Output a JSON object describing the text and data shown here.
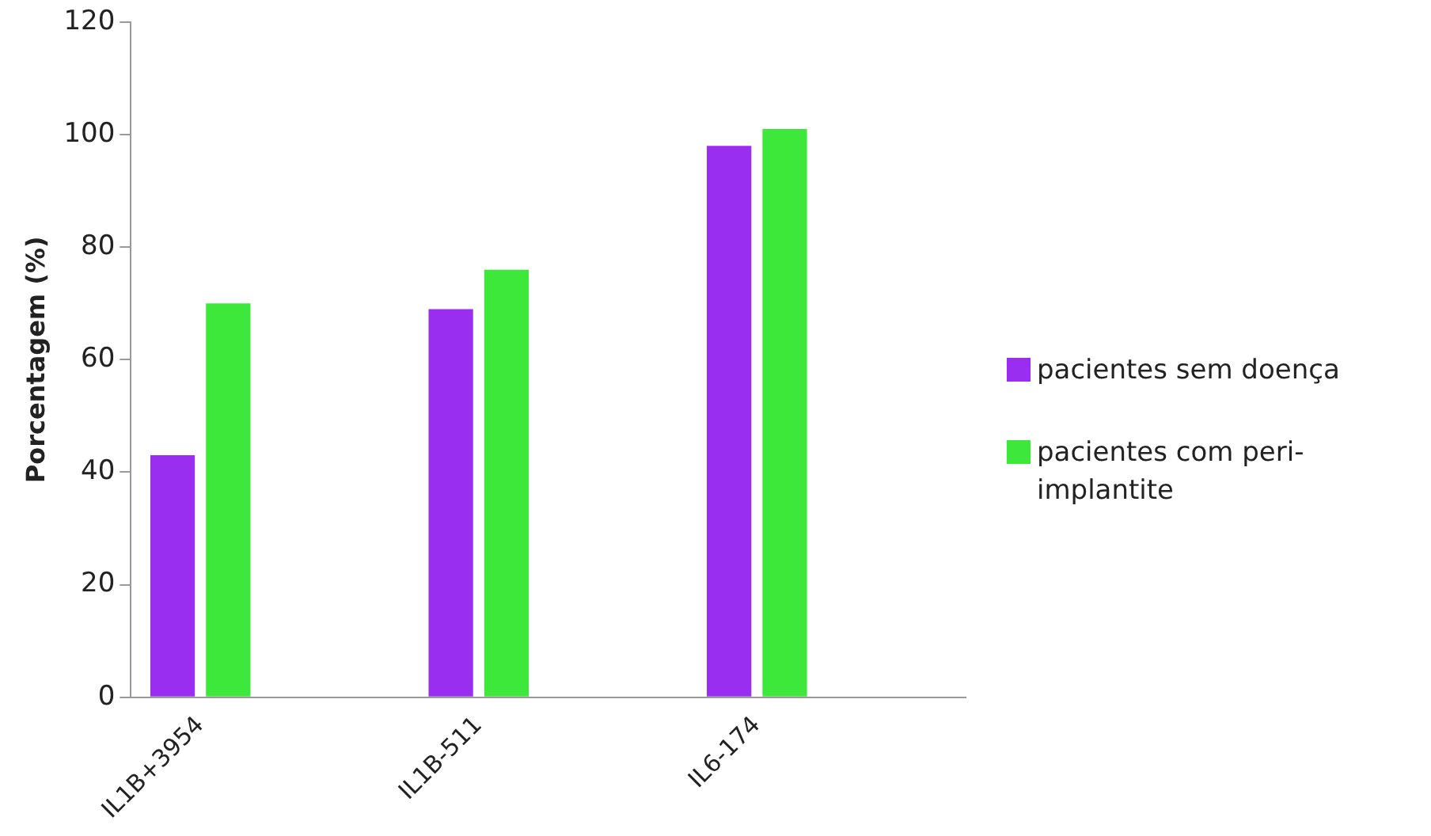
{
  "chart_data": {
    "type": "bar",
    "ylabel": "Porcentagem (%)",
    "categories": [
      "IL1B+3954",
      null,
      "IL1B-511",
      null,
      "IL6-174",
      null
    ],
    "series": [
      {
        "name": "pacientes sem doença",
        "color": "#9a2ef0",
        "values": [
          43,
          null,
          69,
          null,
          98,
          null
        ]
      },
      {
        "name": "pacientes com peri-implantite",
        "color": "#3ee83a",
        "values": [
          70,
          null,
          76,
          null,
          101,
          null
        ]
      }
    ],
    "ylim": [
      0,
      120
    ],
    "yticks": [
      0,
      20,
      40,
      60,
      80,
      100,
      120
    ],
    "grid": false,
    "legend": "right"
  }
}
